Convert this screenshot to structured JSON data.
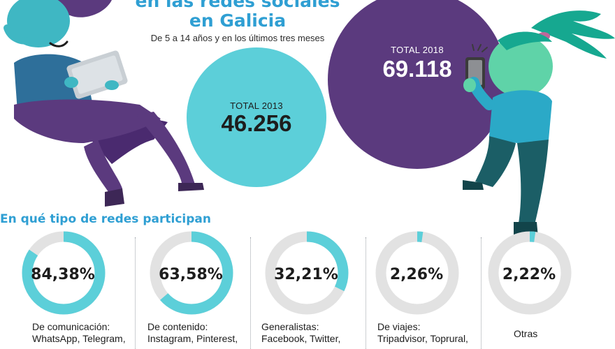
{
  "header": {
    "title_line1": "en las redes sociales",
    "title_line2": "en Galicia",
    "subtitle": "De 5 a 14 años y en los últimos tres meses"
  },
  "totals": {
    "t2013": {
      "label": "TOTAL 2013",
      "value": "46.256"
    },
    "t2018": {
      "label": "TOTAL 2018",
      "value": "69.118"
    }
  },
  "section_title": "En qué tipo de redes participan",
  "categories": [
    {
      "percent_label": "84,38%",
      "label_line1": "De comunicación:",
      "label_line2": "WhatsApp, Telegram,"
    },
    {
      "percent_label": "63,58%",
      "label_line1": "De contenido:",
      "label_line2": "Instagram, Pinterest,"
    },
    {
      "percent_label": "32,21%",
      "label_line1": "Generalistas:",
      "label_line2": "Facebook, Twitter,"
    },
    {
      "percent_label": "2,26%",
      "label_line1": "De viajes:",
      "label_line2": "Tripadvisor, Toprural,"
    },
    {
      "percent_label": "2,22%",
      "label_line1": "Otras",
      "label_line2": ""
    }
  ],
  "chart_data": [
    {
      "type": "bubble",
      "categories": [
        "TOTAL 2013",
        "TOTAL 2018"
      ],
      "values": [
        46256,
        69118
      ]
    },
    {
      "type": "pie",
      "categories": [
        "De comunicación",
        "De contenido",
        "Generalistas",
        "De viajes",
        "Otras"
      ],
      "values": [
        84.38,
        63.58,
        32.21,
        2.26,
        2.22
      ]
    }
  ],
  "colors": {
    "teal": "#5ccfd9",
    "purple": "#5b3a7e",
    "title_blue": "#2f9fd3",
    "ring_track": "#e2e2e2",
    "teal_skin": "#3fb7c3",
    "dark_teal": "#1b5e66",
    "green_hair": "#16a890"
  },
  "icons": [
    "boy-with-tablet-illustration",
    "girl-with-phone-illustration"
  ]
}
